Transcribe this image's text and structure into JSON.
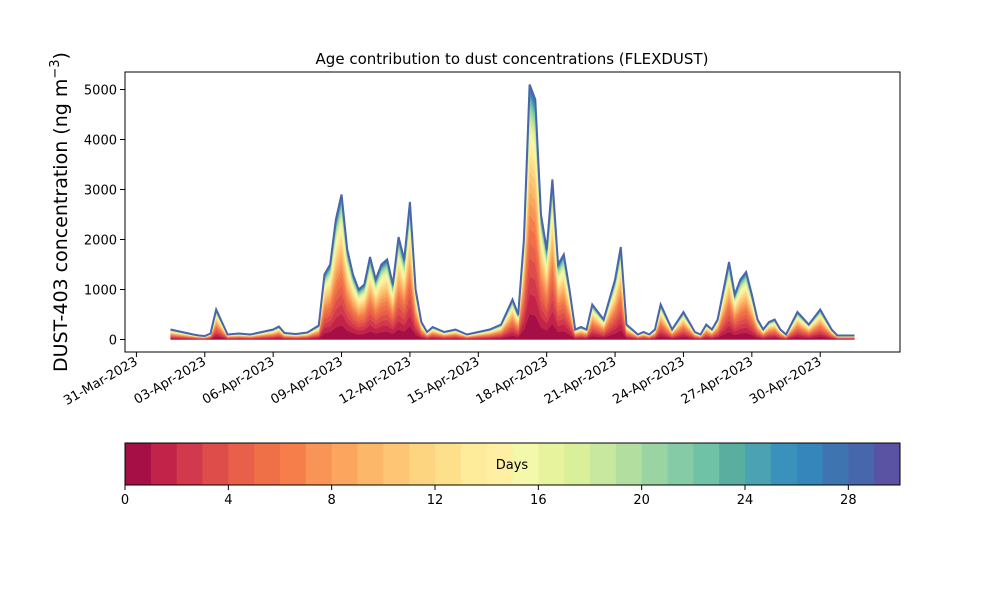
{
  "chart_data": {
    "type": "area",
    "stacked": true,
    "title": "Age contribution to dust concentrations (FLEXDUST)",
    "ylabel": "DUST-403 concentration (ng m",
    "ylabel_sup": "−3",
    "ylabel_close": ")",
    "xlabel": "",
    "ylim": [
      -250,
      5350
    ],
    "yticks": [
      0,
      1000,
      2000,
      3000,
      4000,
      5000
    ],
    "x_axis_start": "2023-03-30T12:00",
    "x_axis_end": "2023-05-03T12:00",
    "xticks": [
      "31-Mar-2023",
      "03-Apr-2023",
      "06-Apr-2023",
      "09-Apr-2023",
      "12-Apr-2023",
      "15-Apr-2023",
      "18-Apr-2023",
      "21-Apr-2023",
      "24-Apr-2023",
      "27-Apr-2023",
      "30-Apr-2023"
    ],
    "xtick_dates": [
      "2023-03-31",
      "2023-04-03",
      "2023-04-06",
      "2023-04-09",
      "2023-04-12",
      "2023-04-15",
      "2023-04-18",
      "2023-04-21",
      "2023-04-24",
      "2023-04-27",
      "2023-04-30"
    ],
    "total": {
      "x": [
        "2023-04-01T12:00",
        "2023-04-02T00:00",
        "2023-04-02T12:00",
        "2023-04-02T18:00",
        "2023-04-03T00:00",
        "2023-04-03T06:00",
        "2023-04-03T12:00",
        "2023-04-04T00:00",
        "2023-04-04T12:00",
        "2023-04-05T00:00",
        "2023-04-05T12:00",
        "2023-04-06T00:00",
        "2023-04-06T06:00",
        "2023-04-06T12:00",
        "2023-04-07T00:00",
        "2023-04-07T12:00",
        "2023-04-08T00:00",
        "2023-04-08T06:00",
        "2023-04-08T12:00",
        "2023-04-08T18:00",
        "2023-04-09T00:00",
        "2023-04-09T06:00",
        "2023-04-09T12:00",
        "2023-04-09T18:00",
        "2023-04-10T00:00",
        "2023-04-10T06:00",
        "2023-04-10T12:00",
        "2023-04-10T18:00",
        "2023-04-11T00:00",
        "2023-04-11T06:00",
        "2023-04-11T12:00",
        "2023-04-11T18:00",
        "2023-04-12T00:00",
        "2023-04-12T06:00",
        "2023-04-12T12:00",
        "2023-04-12T18:00",
        "2023-04-13T00:00",
        "2023-04-13T12:00",
        "2023-04-14T00:00",
        "2023-04-14T12:00",
        "2023-04-15T00:00",
        "2023-04-15T12:00",
        "2023-04-16T00:00",
        "2023-04-16T12:00",
        "2023-04-16T18:00",
        "2023-04-17T00:00",
        "2023-04-17T06:00",
        "2023-04-17T12:00",
        "2023-04-17T18:00",
        "2023-04-18T00:00",
        "2023-04-18T06:00",
        "2023-04-18T12:00",
        "2023-04-18T18:00",
        "2023-04-19T00:00",
        "2023-04-19T06:00",
        "2023-04-19T12:00",
        "2023-04-19T18:00",
        "2023-04-20T00:00",
        "2023-04-20T12:00",
        "2023-04-21T00:00",
        "2023-04-21T06:00",
        "2023-04-21T12:00",
        "2023-04-21T18:00",
        "2023-04-22T00:00",
        "2023-04-22T06:00",
        "2023-04-22T12:00",
        "2023-04-22T18:00",
        "2023-04-23T00:00",
        "2023-04-23T12:00",
        "2023-04-24T00:00",
        "2023-04-24T12:00",
        "2023-04-24T18:00",
        "2023-04-25T00:00",
        "2023-04-25T06:00",
        "2023-04-25T12:00",
        "2023-04-26T00:00",
        "2023-04-26T06:00",
        "2023-04-26T12:00",
        "2023-04-26T18:00",
        "2023-04-27T00:00",
        "2023-04-27T06:00",
        "2023-04-27T12:00",
        "2023-04-27T18:00",
        "2023-04-28T00:00",
        "2023-04-28T06:00",
        "2023-04-28T12:00",
        "2023-04-29T00:00",
        "2023-04-29T12:00",
        "2023-04-30T00:00",
        "2023-04-30T06:00",
        "2023-04-30T12:00",
        "2023-04-30T18:00",
        "2023-05-01T00:00",
        "2023-05-01T12:00"
      ],
      "y": [
        200,
        150,
        100,
        80,
        70,
        120,
        600,
        100,
        120,
        100,
        150,
        200,
        260,
        130,
        110,
        140,
        280,
        1300,
        1500,
        2400,
        2900,
        1800,
        1300,
        1000,
        1100,
        1650,
        1200,
        1500,
        1600,
        1100,
        2050,
        1600,
        2750,
        1000,
        350,
        150,
        250,
        150,
        200,
        100,
        150,
        200,
        300,
        800,
        500,
        2000,
        5100,
        4800,
        2500,
        1800,
        3200,
        1500,
        1700,
        1000,
        200,
        250,
        200,
        700,
        400,
        1200,
        1850,
        300,
        200,
        100,
        150,
        100,
        200,
        700,
        200,
        550,
        150,
        100,
        300,
        200,
        400,
        1550,
        900,
        1200,
        1350,
        900,
        400,
        200,
        350,
        400,
        200,
        100,
        550,
        300,
        600,
        400,
        200,
        80,
        80,
        80
      ]
    },
    "age_fractions": [
      0.1,
      0.08,
      0.07,
      0.07,
      0.06,
      0.06,
      0.05,
      0.05,
      0.045,
      0.04,
      0.04,
      0.035,
      0.035,
      0.03,
      0.03,
      0.025,
      0.025,
      0.02,
      0.02,
      0.02,
      0.015,
      0.015,
      0.015,
      0.01,
      0.01,
      0.01,
      0.008,
      0.008,
      0.006,
      0.005
    ],
    "colorbar": {
      "label": "Days",
      "min": 0,
      "max": 30,
      "levels": 30,
      "ticks": [
        0,
        4,
        8,
        12,
        16,
        20,
        24,
        28
      ],
      "colors": [
        "#a50f45",
        "#c22348",
        "#d3394d",
        "#df4d4b",
        "#e9604a",
        "#ef7047",
        "#f57e4b",
        "#f89455",
        "#fca55e",
        "#fdb769",
        "#fec674",
        "#fdd480",
        "#fee08b",
        "#feec9b",
        "#feefa2",
        "#f3f8aa",
        "#e8f49d",
        "#d9ef9a",
        "#c8e89f",
        "#b2de9f",
        "#9bd4a3",
        "#84cba6",
        "#6fc2a5",
        "#5aae9f",
        "#4aa2b2",
        "#3a91bc",
        "#3486bb",
        "#3e75b1",
        "#4866ab",
        "#5a53a4"
      ]
    }
  }
}
